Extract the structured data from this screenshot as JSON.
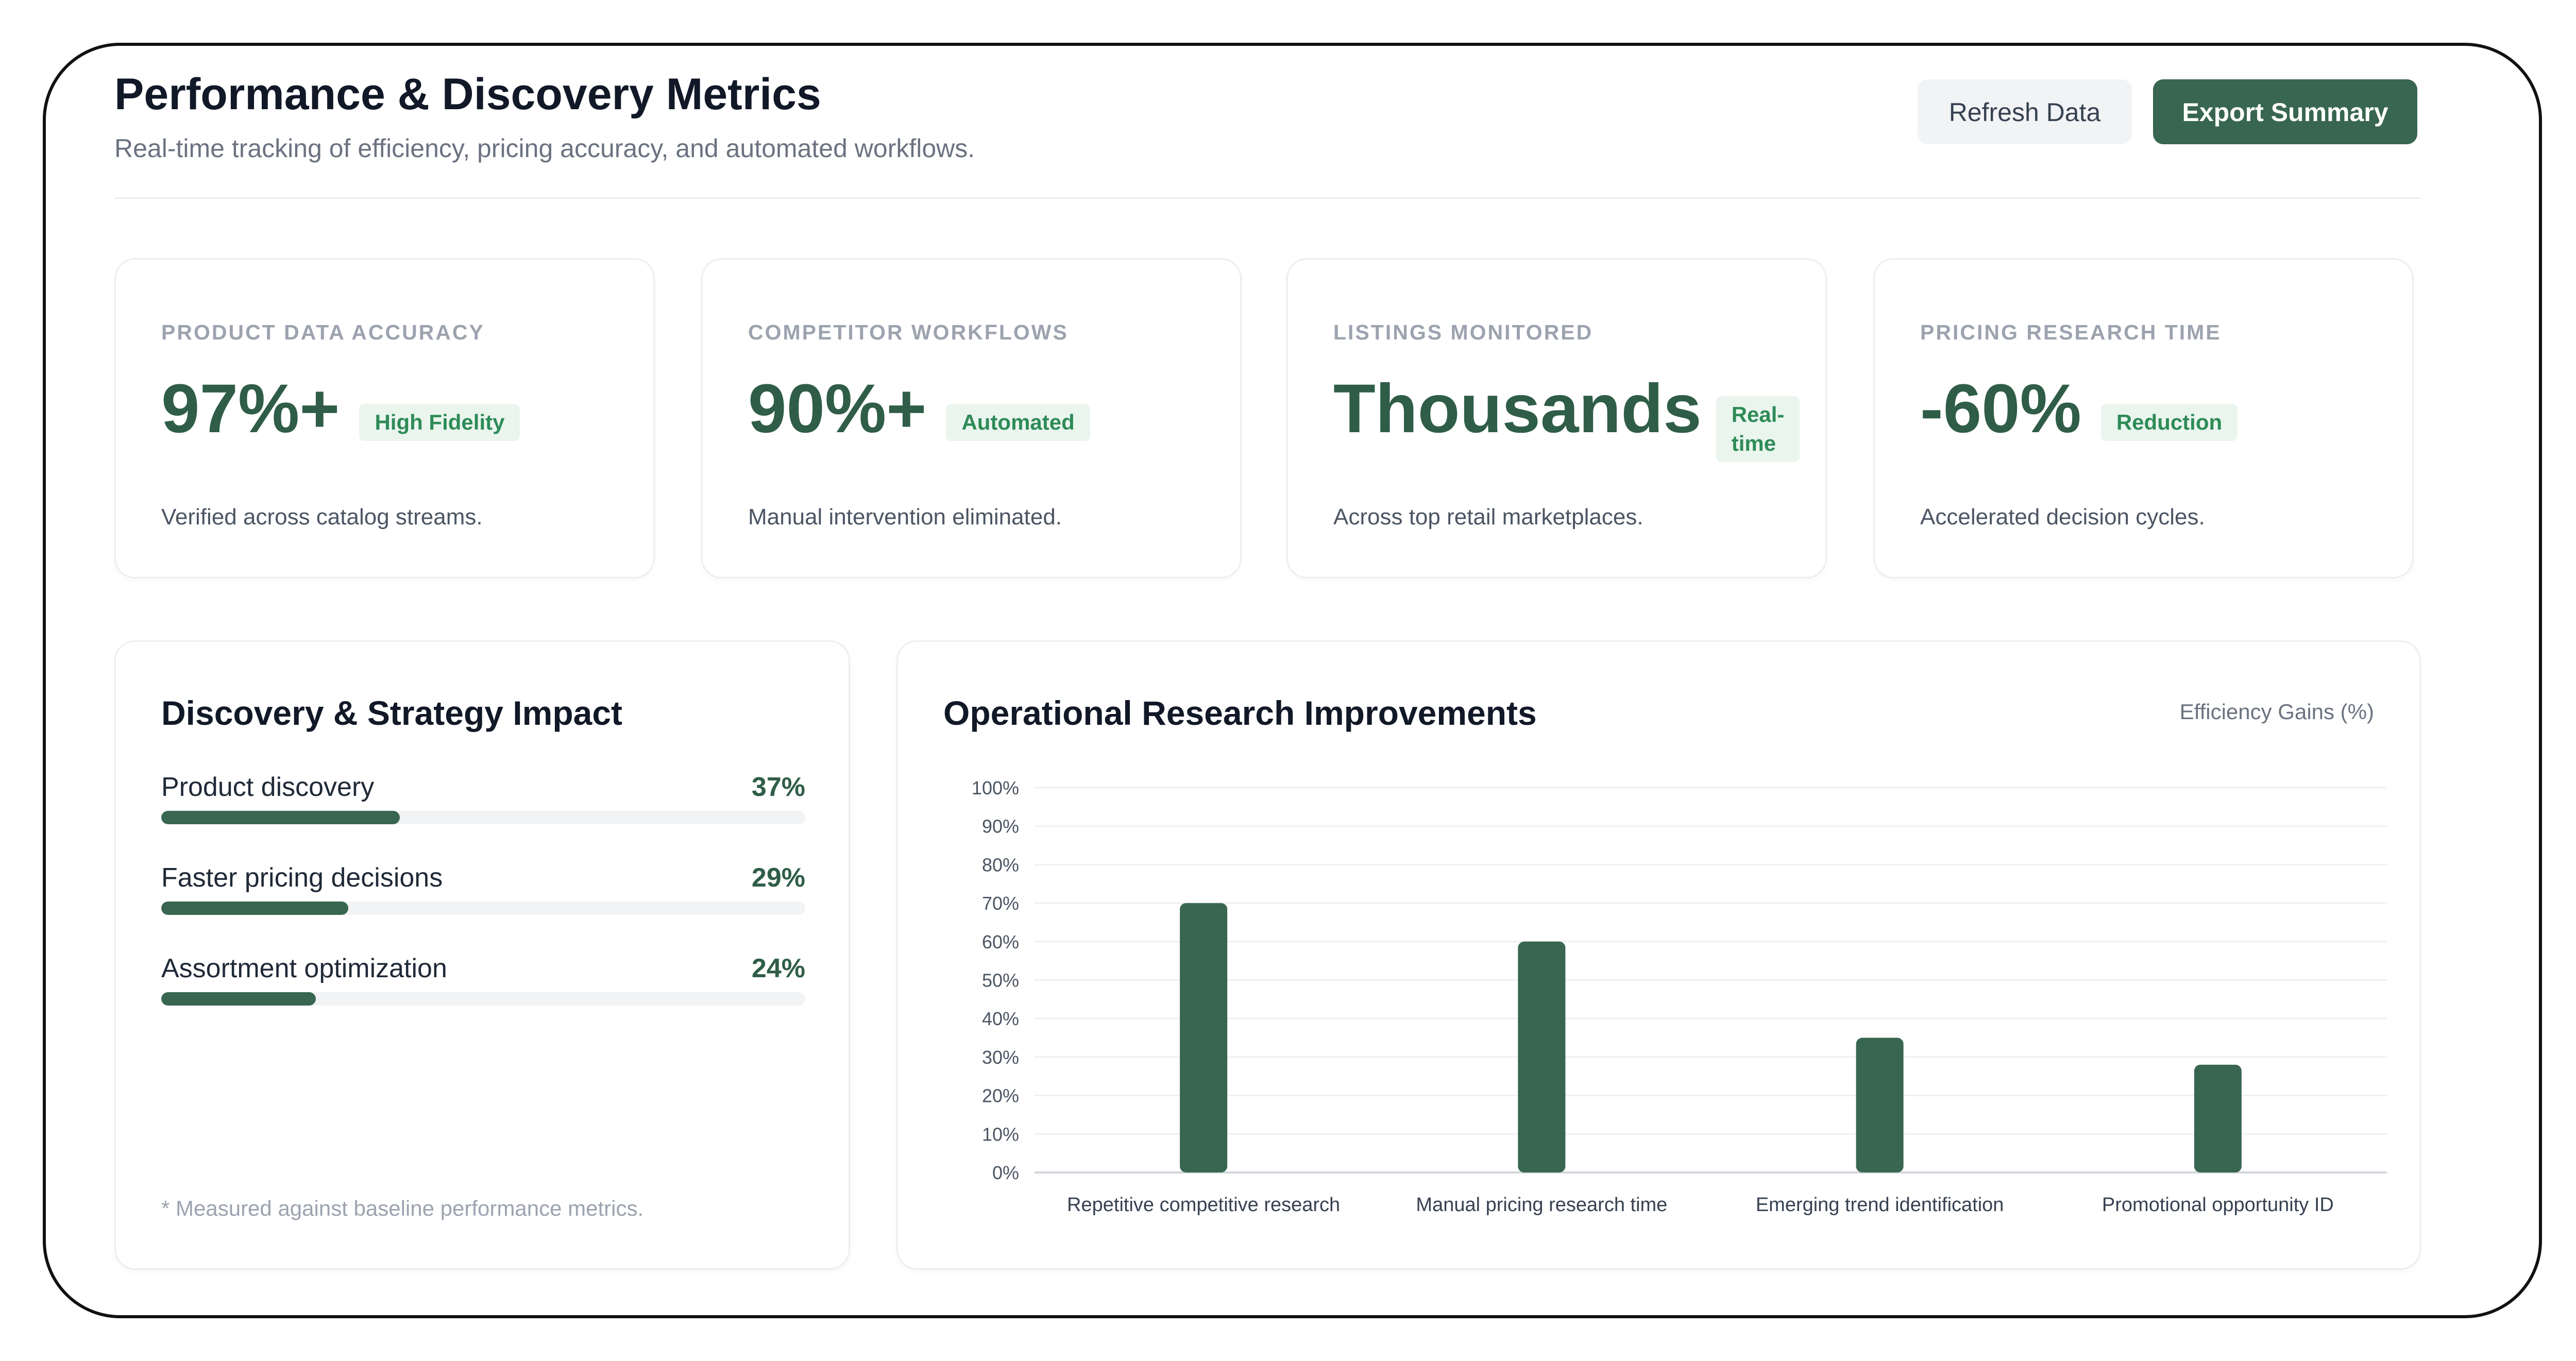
{
  "header": {
    "title": "Performance & Discovery Metrics",
    "subtitle": "Real-time tracking of efficiency, pricing accuracy, and automated workflows.",
    "refresh_label": "Refresh Data",
    "export_label": "Export Summary"
  },
  "kpis": [
    {
      "label": "PRODUCT DATA ACCURACY",
      "value": "97%+",
      "badge": "High Fidelity",
      "desc": "Verified across catalog streams."
    },
    {
      "label": "COMPETITOR WORKFLOWS",
      "value": "90%+",
      "badge": "Automated",
      "desc": "Manual intervention eliminated."
    },
    {
      "label": "LISTINGS MONITORED",
      "value": "Thousands",
      "badge_line1": "Real-",
      "badge_line2": "time",
      "desc": "Across top retail marketplaces."
    },
    {
      "label": "PRICING RESEARCH TIME",
      "value": "-60%",
      "badge": "Reduction",
      "desc": "Accelerated decision cycles."
    }
  ],
  "impact": {
    "title": "Discovery & Strategy Impact",
    "items": [
      {
        "label": "Product discovery",
        "pct_text": "37%",
        "value": 37
      },
      {
        "label": "Faster pricing decisions",
        "pct_text": "29%",
        "value": 29
      },
      {
        "label": "Assortment optimization",
        "pct_text": "24%",
        "value": 24
      }
    ],
    "footnote": "* Measured against baseline performance metrics."
  },
  "chart_panel": {
    "title": "Operational Research Improvements",
    "legend_note": "Efficiency Gains (%)"
  },
  "colors": {
    "accent": "#386650",
    "value_text": "#2f5d47",
    "badge_bg": "#eaf5ee",
    "badge_text": "#2e8b57"
  },
  "chart_data": {
    "type": "bar",
    "categories": [
      "Repetitive competitive research",
      "Manual pricing research time",
      "Emerging trend identification",
      "Promotional opportunity ID"
    ],
    "values": [
      70,
      60,
      35,
      28
    ],
    "ylim": [
      0,
      100
    ],
    "yticks": [
      "0%",
      "10%",
      "20%",
      "30%",
      "40%",
      "50%",
      "60%",
      "70%",
      "80%",
      "90%",
      "100%"
    ],
    "grid": true,
    "xlabel": "",
    "ylabel": ""
  }
}
